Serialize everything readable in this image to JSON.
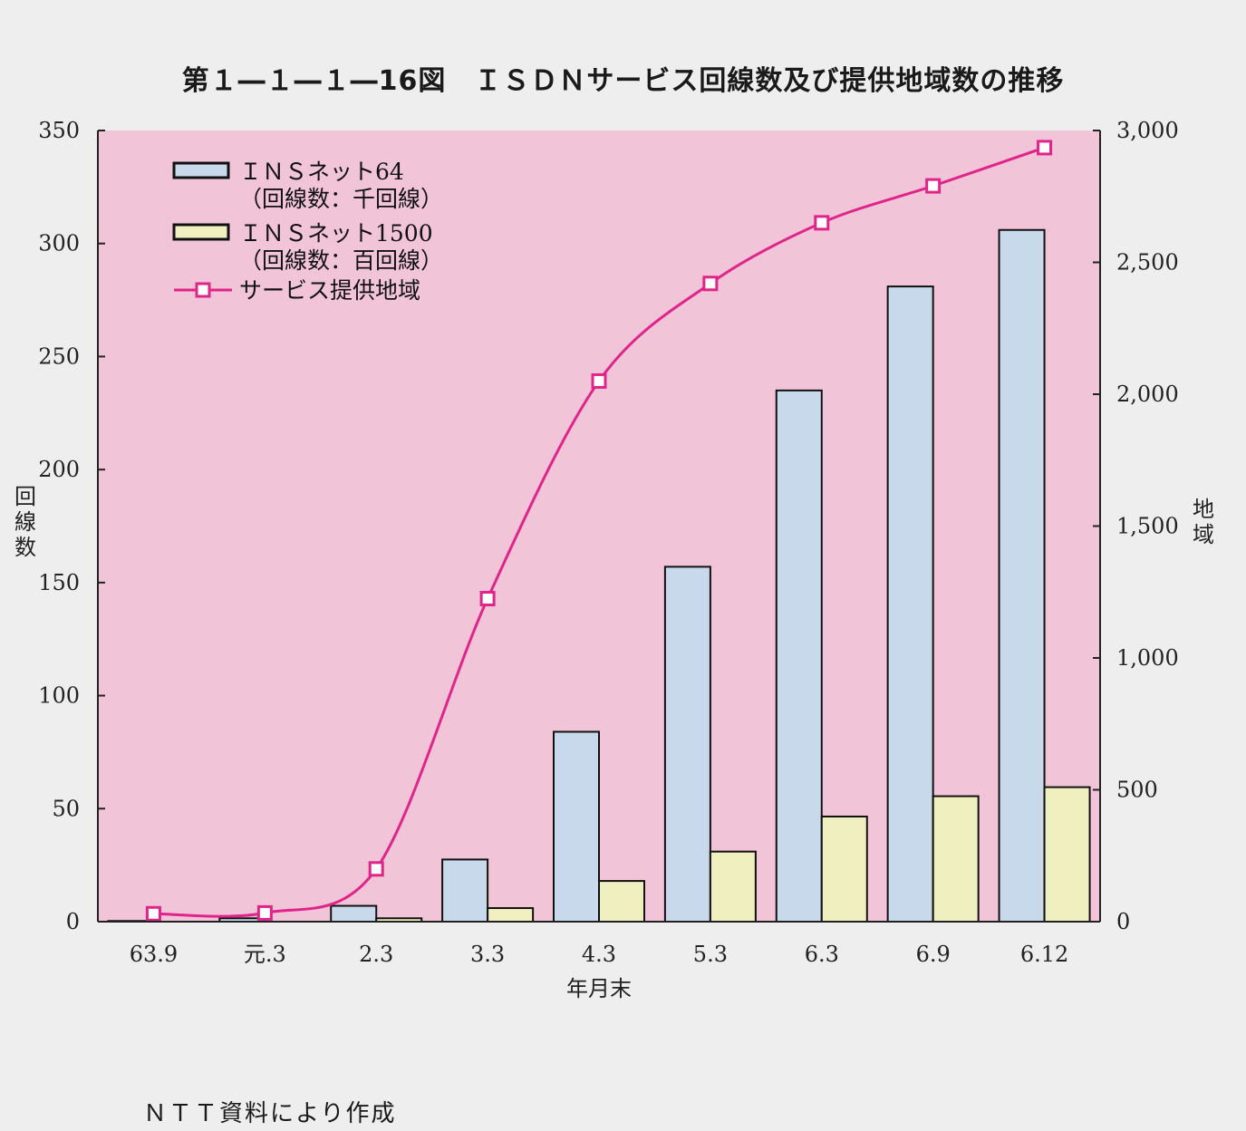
{
  "chart_data": {
    "type": "bar",
    "title": "第１―１―１―16図　ＩＳＤＮサービス回線数及び提供地域数の推移",
    "xlabel": "年月末",
    "ylabel_left": "回線数",
    "ylabel_right": "地域",
    "categories": [
      "63.9",
      "元.3",
      "2.3",
      "3.3",
      "4.3",
      "5.3",
      "6.3",
      "6.9",
      "6.12"
    ],
    "y_left_range": [
      0,
      350
    ],
    "y_left_ticks": [
      "0",
      "50",
      "100",
      "150",
      "200",
      "250",
      "300",
      "350"
    ],
    "y_right_range": [
      0,
      3000
    ],
    "y_right_ticks": [
      "0",
      "500",
      "1,000",
      "1,500",
      "2,000",
      "2,500",
      "3,000"
    ],
    "grid": false,
    "legend_position": "top-left",
    "series": [
      {
        "name": "ＩＮＳネット64",
        "name_sub": "（回線数：千回線）",
        "kind": "bar",
        "axis": "left",
        "color": "#c9d9ec",
        "values": [
          0.3,
          1.5,
          7,
          27.5,
          84,
          157,
          235,
          281,
          306
        ]
      },
      {
        "name": "ＩＮＳネット1500",
        "name_sub": "（回線数：百回線）",
        "kind": "bar",
        "axis": "left",
        "color": "#efefc0",
        "values": [
          0,
          0,
          1.5,
          6,
          18,
          31,
          46.5,
          55.5,
          59.5
        ]
      },
      {
        "name": "サービス提供地域",
        "kind": "line",
        "axis": "right",
        "color": "#e0258a",
        "values": [
          30,
          33,
          200,
          1225,
          2050,
          2420,
          2650,
          2790,
          2935
        ]
      }
    ],
    "plot_background": "#f1c4d8"
  },
  "source_note": "ＮＴＴ資料により作成"
}
